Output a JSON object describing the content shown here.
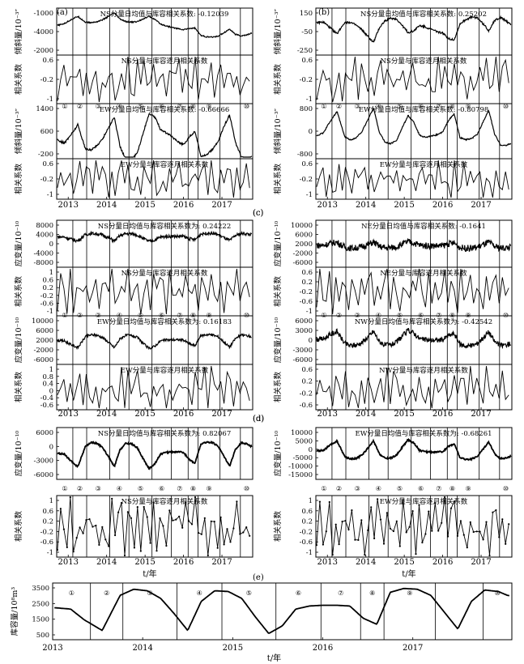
{
  "chart_data": [
    {
      "id": "a",
      "panel_label": "(a)",
      "type": "line",
      "subplots": [
        {
          "title": "NS分量日均值与库容相关系数: -0.12039",
          "ylabel": "倾斜量/10⁻³″",
          "yticks": [
            "-1000",
            "-4000",
            "-2000"
          ],
          "ylim": [
            -2100,
            900
          ]
        },
        {
          "title": "NS分量与库容逐月相关系数",
          "ylabel": "相关系数",
          "yticks": [
            "0.6",
            "-0.2",
            "-1"
          ],
          "ylim": [
            -1,
            1
          ]
        },
        {
          "title": "EW分量日均值与库容相关系数: -0.66666",
          "ylabel": "倾斜量/10⁻³″",
          "yticks": [
            "1400",
            "600",
            "-200"
          ],
          "ylim": [
            -200,
            1500
          ]
        },
        {
          "title": "EW分量与库容逐月相关系数",
          "ylabel": "相关系数",
          "yticks": [
            "0.6",
            "-0.2",
            "-1"
          ],
          "ylim": [
            -1,
            1
          ]
        }
      ],
      "xticks": [
        "2013",
        "2014",
        "2015",
        "2016",
        "2017"
      ]
    },
    {
      "id": "b",
      "panel_label": "(b)",
      "type": "line",
      "subplots": [
        {
          "title": "NS分量日均值与库容相关系数: 0.25202",
          "ylabel": "倾斜量/10⁻³″",
          "yticks": [
            "150",
            "-50",
            "-250"
          ],
          "ylim": [
            -260,
            170
          ]
        },
        {
          "title": "NS分量与库容逐月相关系数",
          "ylabel": "相关系数",
          "yticks": [
            "0.6",
            "-0.2",
            "-1"
          ],
          "ylim": [
            -1,
            1
          ]
        },
        {
          "title": "EW分量日均值与库容相关系数: -0.80798",
          "ylabel": "倾斜量/10⁻³″",
          "yticks": [
            "800",
            "0",
            "-800"
          ],
          "ylim": [
            -850,
            850
          ]
        },
        {
          "title": "EW分量与库容逐月相关系数",
          "ylabel": "相关系数",
          "yticks": [
            "0.6",
            "-0.2",
            "-1"
          ],
          "ylim": [
            -1,
            1
          ]
        }
      ],
      "xticks": [
        "2013",
        "2014",
        "2015",
        "2016",
        "2017"
      ]
    },
    {
      "id": "c",
      "panel_label": "(c)",
      "type": "line",
      "subplots": [
        {
          "title": "NS分量日均值与库容相关系数为: 0.24222",
          "ylabel": "应变量/10⁻¹⁰",
          "yticks": [
            "8000",
            "4000",
            "0",
            "-4000",
            "-8000"
          ],
          "ylim": [
            -8500,
            8500
          ]
        },
        {
          "title": "NS分量与库容逐月相关系数",
          "ylabel": "相关系数",
          "yticks": [
            "1",
            "0.6",
            "0.2",
            "-0.2",
            "-0.6",
            "-1"
          ],
          "ylim": [
            -1,
            1
          ]
        },
        {
          "title": "EW分量日均值与库容相关系数为: 0.16183",
          "ylabel": "应变量/10⁻¹⁰",
          "yticks": [
            "10000",
            "6000",
            "2000",
            "-2000",
            "-6000"
          ],
          "ylim": [
            -6500,
            10500
          ]
        },
        {
          "title": "EW分量与库容逐月相关系数",
          "ylabel": "相关系数",
          "yticks": [
            "1",
            "0.8",
            "0.4",
            "0",
            "-0.4",
            "-0.6"
          ],
          "ylim": [
            -0.6,
            1
          ]
        }
      ],
      "xticks": [
        "2013",
        "2014",
        "2015",
        "2016",
        "2017"
      ]
    },
    {
      "id": "c2",
      "panel_label": "(c)",
      "type": "line",
      "subplots": [
        {
          "title": "NE分量日均值与库容相关系数: -0.1641",
          "ylabel": "应变量/10⁻¹⁰",
          "yticks": [
            "10000",
            "6000",
            "2000",
            "-2000",
            "-6000"
          ],
          "ylim": [
            -6500,
            10500
          ]
        },
        {
          "title": "NE分量与库容逐月相关系数",
          "ylabel": "相关系数",
          "yticks": [
            "0.6",
            "0.2",
            "-0.2",
            "-0.6",
            "-1"
          ],
          "ylim": [
            -1,
            1
          ]
        },
        {
          "title": "NW分量日均值与库容相关系数为: -0.42542",
          "ylabel": "应变量/10⁻¹⁰",
          "yticks": [
            "6000",
            "3000",
            "0",
            "-3000",
            "-6000"
          ],
          "ylim": [
            -6500,
            7000
          ]
        },
        {
          "title": "NW分量与库容逐月相关系数",
          "ylabel": "相关系数",
          "yticks": [
            "0.6",
            "0.2",
            "-0.2",
            "-0.6"
          ],
          "ylim": [
            -0.8,
            1
          ]
        }
      ],
      "xticks": [
        "2013",
        "2014",
        "2015",
        "2016",
        "2017"
      ]
    },
    {
      "id": "d",
      "panel_label": "(d)",
      "type": "line",
      "subplots": [
        {
          "title": "NS分量日均值与库容相关系数为: 0.82067",
          "ylabel": "应变量/10⁻¹⁰",
          "yticks": [
            "6000",
            "0",
            "-3000",
            "-6000"
          ],
          "ylim": [
            -6500,
            7000
          ]
        },
        {
          "title": "NS分量与库容逐月相关系数",
          "ylabel": "相关系数",
          "yticks": [
            "1",
            "0.6",
            "0.2",
            "-0.2",
            "-0.6",
            "-1"
          ],
          "ylim": [
            -1,
            1
          ]
        }
      ],
      "xticks": [
        "2013",
        "2014",
        "2015",
        "2016",
        "2017"
      ]
    },
    {
      "id": "d2",
      "panel_label": "(d)",
      "type": "line",
      "subplots": [
        {
          "title": "EW分量日均值与库容相关系数为: -0.68261",
          "ylabel": "应变量/10⁻¹⁰",
          "yticks": [
            "10000",
            "5000",
            "0",
            "-5000",
            "-10000",
            "-15000"
          ],
          "ylim": [
            -15500,
            10500
          ]
        },
        {
          "title": "EW分量与库容逐月相关系数",
          "ylabel": "相关系数",
          "yticks": [
            "1",
            "0.6",
            "0.2",
            "-0.2",
            "-0.6",
            "-1"
          ],
          "ylim": [
            -1,
            1
          ]
        }
      ],
      "xticks": [
        "2013",
        "2014",
        "2015",
        "2016",
        "2017"
      ]
    },
    {
      "id": "e",
      "panel_label": "(e)",
      "type": "line",
      "subplots": [
        {
          "title": "",
          "ylabel": "库容量/10⁸m³",
          "yticks": [
            "3500",
            "2500",
            "1500",
            "500"
          ],
          "ylim": [
            400,
            3900
          ]
        }
      ],
      "xticks": [
        "2013",
        "2014",
        "2015",
        "2016",
        "2017"
      ],
      "xlabel": "t/年"
    }
  ],
  "shared": {
    "xlabel": "t/年",
    "stage_markers": [
      "①",
      "②",
      "③",
      "④",
      "⑤",
      "⑥",
      "⑦",
      "⑧",
      "⑨",
      "⑩"
    ],
    "reservoir_capacity": {
      "t": [
        2013.0,
        2013.2,
        2013.35,
        2013.55,
        2013.75,
        2013.9,
        2014.05,
        2014.2,
        2014.35,
        2014.5,
        2014.65,
        2014.8,
        2014.95,
        2015.1,
        2015.25,
        2015.4,
        2015.55,
        2015.7,
        2015.85,
        2016.0,
        2016.15,
        2016.3,
        2016.45,
        2016.6,
        2016.75,
        2016.9,
        2017.05,
        2017.2,
        2017.35,
        2017.5,
        2017.65,
        2017.8,
        2017.95,
        2018.05,
        2018.1
      ],
      "value": [
        2400,
        2300,
        1600,
        900,
        3200,
        3600,
        3500,
        3000,
        2000,
        900,
        2800,
        3500,
        3450,
        3000,
        1800,
        700,
        1200,
        2300,
        2500,
        2550,
        2550,
        2500,
        1700,
        1300,
        3400,
        3650,
        3600,
        3200,
        2100,
        1000,
        2800,
        3550,
        3450,
        3200,
        3150
      ]
    }
  }
}
